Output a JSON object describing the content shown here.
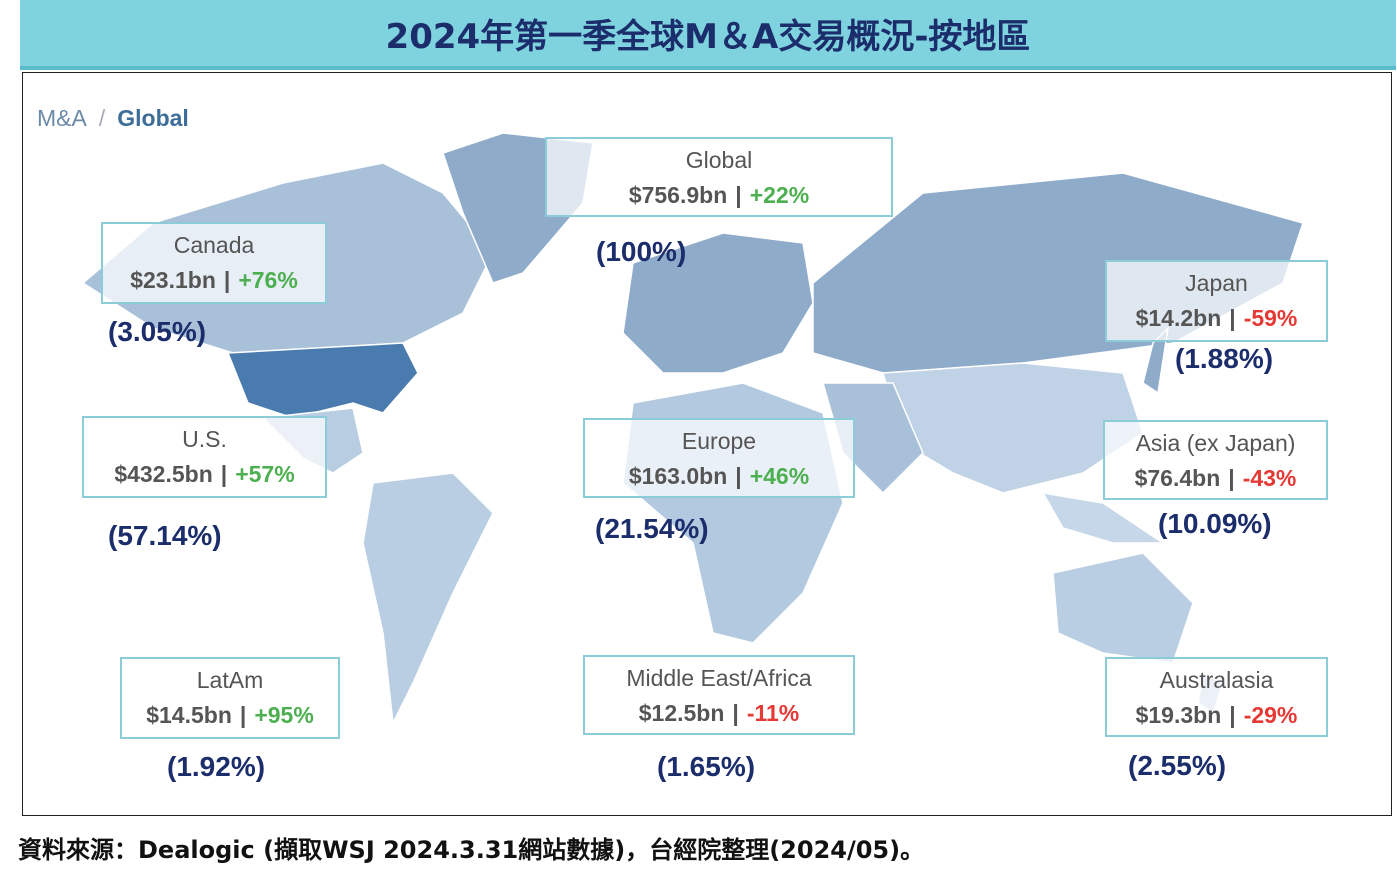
{
  "header": {
    "title": "2024年第一季全球M＆A交易概況-按地區"
  },
  "breadcrumb": [
    "M&A",
    "/",
    "Global"
  ],
  "separator": "|",
  "regions": [
    {
      "name": "Global",
      "value": "$756.9bn",
      "change": "+22%",
      "share": "(100%)"
    },
    {
      "name": "Canada",
      "value": "$23.1bn",
      "change": "+76%",
      "share": "(3.05%)"
    },
    {
      "name": "U.S.",
      "value": "$432.5bn",
      "change": "+57%",
      "share": "(57.14%)"
    },
    {
      "name": "LatAm",
      "value": "$14.5bn",
      "change": "+95%",
      "share": "(1.92%)"
    },
    {
      "name": "Europe",
      "value": "$163.0bn",
      "change": "+46%",
      "share": "(21.54%)"
    },
    {
      "name": "Middle East/Africa",
      "value": "$12.5bn",
      "change": "-11%",
      "share": "(1.65%)"
    },
    {
      "name": "Japan",
      "value": "$14.2bn",
      "change": "-59%",
      "share": "(1.88%)"
    },
    {
      "name": "Asia (ex Japan)",
      "value": "$76.4bn",
      "change": "-43%",
      "share": "(10.09%)"
    },
    {
      "name": "Australasia",
      "value": "$19.3bn",
      "change": "-29%",
      "share": "(2.55%)"
    }
  ],
  "source": "資料來源：Dealogic (擷取WSJ 2024.3.31網站數據)，台經院整理(2024/05)。"
}
